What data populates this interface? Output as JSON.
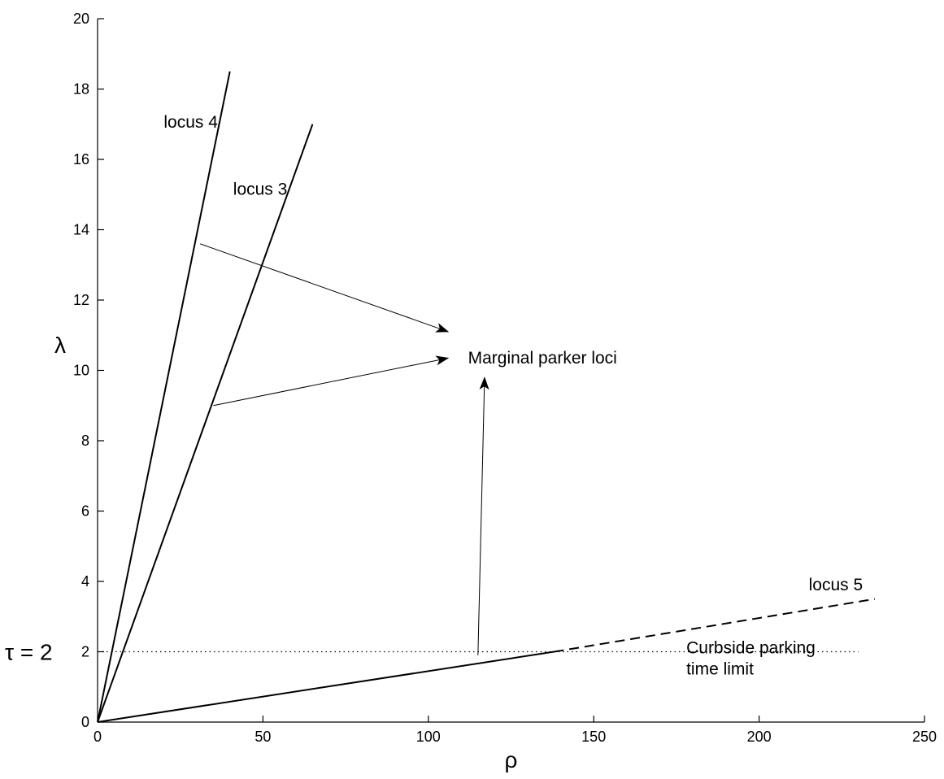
{
  "chart_data": {
    "type": "line",
    "title": "",
    "xlabel": "ρ",
    "ylabel": "λ",
    "xlim": [
      0,
      250
    ],
    "ylim": [
      0,
      20
    ],
    "xticks": [
      0,
      50,
      100,
      150,
      200,
      250
    ],
    "yticks": [
      0,
      2,
      4,
      6,
      8,
      10,
      12,
      14,
      16,
      18,
      20
    ],
    "grid": false,
    "series": [
      {
        "name": "locus 4",
        "style": "solid",
        "points": [
          [
            0,
            0
          ],
          [
            40,
            18.5
          ]
        ]
      },
      {
        "name": "locus 3",
        "style": "solid",
        "points": [
          [
            0,
            0
          ],
          [
            65,
            17.0
          ]
        ]
      },
      {
        "name": "locus 5",
        "style": "solid",
        "points": [
          [
            0,
            0
          ],
          [
            138,
            2.0
          ]
        ]
      },
      {
        "name": "locus 5",
        "style": "dashed",
        "points": [
          [
            138,
            2.0
          ],
          [
            235,
            3.5
          ]
        ]
      }
    ],
    "reference_line": {
      "label": "τ = 2",
      "y": 2,
      "x_range": [
        0,
        230
      ],
      "style": "dotted"
    },
    "annotations": [
      {
        "text": "locus 4",
        "x": 20,
        "y": 16.9
      },
      {
        "text": "locus 3",
        "x": 41,
        "y": 15.0
      },
      {
        "text": "locus 5",
        "x": 215,
        "y": 3.75
      },
      {
        "text": "Marginal parker loci",
        "x": 112,
        "y": 10.2
      },
      {
        "text": "Curbside parking",
        "x": 178,
        "y": 1.95
      },
      {
        "text": "time limit",
        "x": 178,
        "y": 1.35
      }
    ],
    "arrows": [
      {
        "from": [
          31,
          13.6
        ],
        "to": [
          106,
          11.1
        ]
      },
      {
        "from": [
          35,
          9.0
        ],
        "to": [
          106,
          10.35
        ]
      },
      {
        "from": [
          115,
          1.9
        ],
        "to": [
          117,
          9.8
        ]
      }
    ]
  }
}
